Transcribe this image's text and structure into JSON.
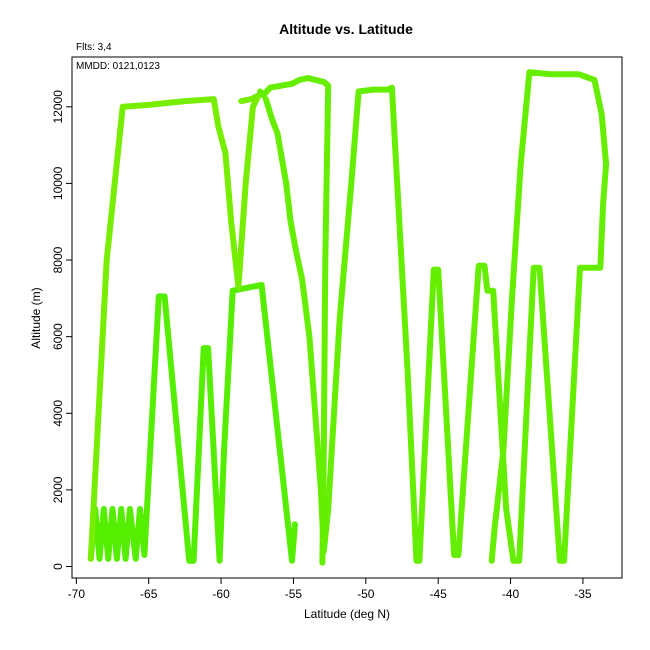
{
  "chart_data": {
    "type": "line",
    "title": "Altitude vs. Latitude",
    "flts_label": "Flts: 3,4",
    "mmdd_label": "MMDD: 0121,0123",
    "xlabel": "Latitude (deg N)",
    "ylabel": "Altitude (m)",
    "xlim": [
      -70.3,
      -32.3
    ],
    "ylim": [
      -300,
      13300
    ],
    "xticks": [
      -70,
      -65,
      -60,
      -55,
      -50,
      -45,
      -40,
      -35
    ],
    "yticks": [
      0,
      2000,
      4000,
      6000,
      8000,
      10000,
      12000
    ],
    "grid": false,
    "series": [
      {
        "color": "#55ee00",
        "points": [
          [
            -69.0,
            200
          ],
          [
            -68.7,
            1500
          ],
          [
            -68.4,
            200
          ],
          [
            -68.1,
            1500
          ],
          [
            -67.8,
            200
          ],
          [
            -67.5,
            1500
          ],
          [
            -67.2,
            200
          ],
          [
            -66.9,
            1500
          ],
          [
            -66.6,
            200
          ],
          [
            -66.3,
            1500
          ],
          [
            -65.9,
            200
          ],
          [
            -65.6,
            1500
          ],
          [
            -65.3,
            300
          ],
          [
            -64.3,
            7050
          ],
          [
            -63.9,
            7050
          ],
          [
            -62.2,
            150
          ],
          [
            -61.9,
            150
          ],
          [
            -61.2,
            5700
          ],
          [
            -60.9,
            5700
          ],
          [
            -60.1,
            150
          ],
          [
            -59.8,
            3000
          ],
          [
            -59.2,
            7200
          ],
          [
            -57.2,
            7350
          ],
          [
            -55.1,
            150
          ],
          [
            -54.9,
            1100
          ]
        ]
      },
      {
        "color": "#77ee00",
        "points": [
          [
            -69.0,
            200
          ],
          [
            -67.9,
            8000
          ],
          [
            -66.8,
            12000
          ],
          [
            -65.0,
            12050
          ],
          [
            -62.5,
            12150
          ],
          [
            -60.5,
            12200
          ],
          [
            -60.2,
            11500
          ],
          [
            -59.7,
            10800
          ],
          [
            -59.3,
            9000
          ],
          [
            -58.8,
            7300
          ],
          [
            -58.3,
            10000
          ],
          [
            -57.8,
            12000
          ],
          [
            -57.4,
            12300
          ],
          [
            -57.9,
            12200
          ],
          [
            -58.6,
            12150
          ]
        ]
      },
      {
        "color": "#66ee00",
        "points": [
          [
            -57.3,
            12400
          ],
          [
            -57.1,
            12300
          ],
          [
            -56.6,
            12500
          ],
          [
            -55.1,
            12600
          ],
          [
            -54.6,
            12700
          ],
          [
            -54.0,
            12750
          ],
          [
            -52.9,
            12650
          ],
          [
            -52.6,
            12550
          ],
          [
            -52.8,
            8000
          ],
          [
            -52.9,
            3000
          ],
          [
            -53.0,
            100
          ]
        ]
      },
      {
        "color": "#66ee00",
        "points": [
          [
            -56.9,
            12200
          ],
          [
            -56.5,
            11700
          ],
          [
            -56.1,
            11300
          ],
          [
            -55.5,
            10000
          ],
          [
            -55.2,
            9000
          ],
          [
            -54.8,
            8200
          ],
          [
            -54.4,
            7500
          ],
          [
            -53.9,
            6000
          ],
          [
            -53.5,
            4000
          ],
          [
            -53.1,
            2000
          ],
          [
            -52.9,
            400
          ],
          [
            -52.6,
            1500
          ],
          [
            -51.8,
            6500
          ],
          [
            -51.0,
            10000
          ],
          [
            -50.5,
            12400
          ],
          [
            -49.5,
            12450
          ],
          [
            -48.5,
            12450
          ],
          [
            -48.2,
            12500
          ],
          [
            -47.1,
            5000
          ],
          [
            -46.5,
            150
          ],
          [
            -46.3,
            150
          ],
          [
            -45.3,
            7750
          ],
          [
            -45.0,
            7750
          ],
          [
            -43.9,
            300
          ],
          [
            -43.6,
            300
          ],
          [
            -42.2,
            7850
          ],
          [
            -41.8,
            7850
          ],
          [
            -41.6,
            7200
          ],
          [
            -41.2,
            7200
          ],
          [
            -40.3,
            1500
          ],
          [
            -39.8,
            150
          ],
          [
            -39.4,
            150
          ],
          [
            -38.4,
            7800
          ],
          [
            -38.0,
            7800
          ],
          [
            -36.6,
            150
          ],
          [
            -36.3,
            150
          ],
          [
            -35.2,
            7800
          ],
          [
            -33.8,
            7800
          ],
          [
            -33.6,
            9500
          ],
          [
            -33.4,
            10500
          ],
          [
            -33.7,
            11800
          ],
          [
            -34.2,
            12700
          ],
          [
            -35.3,
            12850
          ],
          [
            -37.2,
            12850
          ],
          [
            -38.7,
            12900
          ],
          [
            -39.3,
            10500
          ],
          [
            -39.9,
            7000
          ],
          [
            -40.5,
            3000
          ],
          [
            -41.1,
            1000
          ],
          [
            -41.3,
            150
          ]
        ]
      }
    ]
  }
}
